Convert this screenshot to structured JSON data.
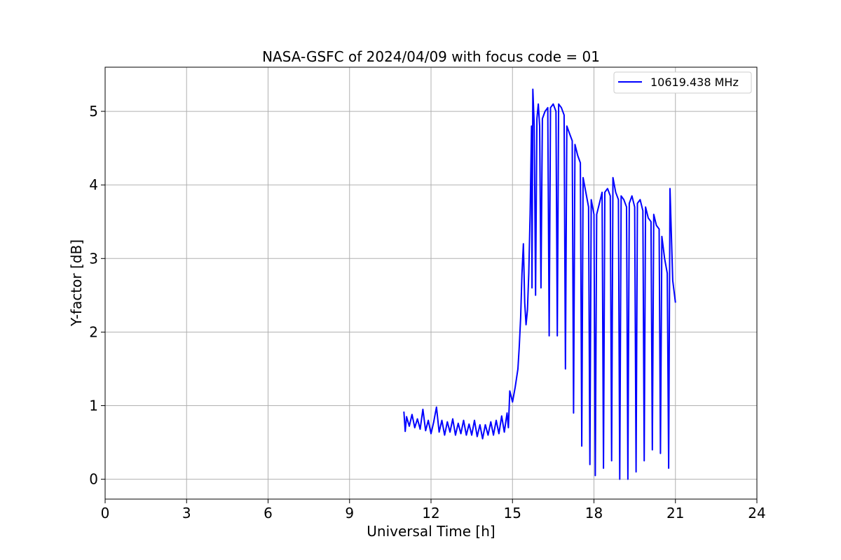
{
  "chart_data": {
    "type": "line",
    "title": "NASA-GSFC of 2024/04/09 with focus code = 01",
    "xlabel": "Universal Time [h]",
    "ylabel": "Y-factor [dB]",
    "xlim": [
      0,
      24
    ],
    "ylim": [
      -0.27,
      5.6
    ],
    "xticks": [
      0,
      3,
      6,
      9,
      12,
      15,
      18,
      21,
      24
    ],
    "yticks": [
      0,
      1,
      2,
      3,
      4,
      5
    ],
    "grid": true,
    "legend_position": "top-right",
    "series": [
      {
        "name": "10619.438 MHz",
        "color": "#0000ff",
        "points": [
          [
            11.0,
            0.92
          ],
          [
            11.05,
            0.65
          ],
          [
            11.1,
            0.85
          ],
          [
            11.2,
            0.72
          ],
          [
            11.3,
            0.88
          ],
          [
            11.4,
            0.7
          ],
          [
            11.5,
            0.82
          ],
          [
            11.6,
            0.68
          ],
          [
            11.7,
            0.95
          ],
          [
            11.8,
            0.66
          ],
          [
            11.9,
            0.8
          ],
          [
            12.0,
            0.62
          ],
          [
            12.1,
            0.78
          ],
          [
            12.2,
            0.98
          ],
          [
            12.3,
            0.64
          ],
          [
            12.4,
            0.8
          ],
          [
            12.5,
            0.6
          ],
          [
            12.6,
            0.78
          ],
          [
            12.7,
            0.64
          ],
          [
            12.8,
            0.82
          ],
          [
            12.9,
            0.6
          ],
          [
            13.0,
            0.76
          ],
          [
            13.1,
            0.62
          ],
          [
            13.2,
            0.8
          ],
          [
            13.3,
            0.6
          ],
          [
            13.4,
            0.75
          ],
          [
            13.5,
            0.6
          ],
          [
            13.6,
            0.8
          ],
          [
            13.7,
            0.58
          ],
          [
            13.8,
            0.74
          ],
          [
            13.9,
            0.55
          ],
          [
            14.0,
            0.74
          ],
          [
            14.1,
            0.6
          ],
          [
            14.2,
            0.78
          ],
          [
            14.3,
            0.6
          ],
          [
            14.4,
            0.8
          ],
          [
            14.5,
            0.62
          ],
          [
            14.6,
            0.86
          ],
          [
            14.7,
            0.64
          ],
          [
            14.8,
            0.9
          ],
          [
            14.85,
            0.7
          ],
          [
            14.9,
            1.2
          ],
          [
            15.0,
            1.05
          ],
          [
            15.1,
            1.25
          ],
          [
            15.2,
            1.5
          ],
          [
            15.25,
            1.8
          ],
          [
            15.3,
            2.2
          ],
          [
            15.35,
            2.8
          ],
          [
            15.4,
            3.2
          ],
          [
            15.45,
            2.4
          ],
          [
            15.5,
            2.1
          ],
          [
            15.55,
            2.3
          ],
          [
            15.6,
            2.8
          ],
          [
            15.65,
            3.6
          ],
          [
            15.7,
            4.8
          ],
          [
            15.72,
            2.6
          ],
          [
            15.75,
            5.3
          ],
          [
            15.8,
            4.8
          ],
          [
            15.85,
            2.5
          ],
          [
            15.9,
            4.9
          ],
          [
            15.95,
            5.1
          ],
          [
            16.0,
            4.8
          ],
          [
            16.05,
            2.6
          ],
          [
            16.1,
            4.9
          ],
          [
            16.2,
            5.0
          ],
          [
            16.3,
            5.05
          ],
          [
            16.35,
            1.95
          ],
          [
            16.4,
            5.05
          ],
          [
            16.5,
            5.1
          ],
          [
            16.6,
            5.0
          ],
          [
            16.65,
            1.95
          ],
          [
            16.7,
            5.1
          ],
          [
            16.8,
            5.05
          ],
          [
            16.9,
            4.95
          ],
          [
            16.95,
            1.5
          ],
          [
            17.0,
            4.8
          ],
          [
            17.1,
            4.7
          ],
          [
            17.2,
            4.6
          ],
          [
            17.25,
            0.9
          ],
          [
            17.3,
            4.55
          ],
          [
            17.4,
            4.4
          ],
          [
            17.5,
            4.3
          ],
          [
            17.55,
            0.45
          ],
          [
            17.6,
            4.1
          ],
          [
            17.7,
            3.9
          ],
          [
            17.8,
            3.7
          ],
          [
            17.85,
            0.2
          ],
          [
            17.9,
            3.8
          ],
          [
            18.0,
            3.6
          ],
          [
            18.05,
            0.05
          ],
          [
            18.1,
            3.6
          ],
          [
            18.2,
            3.75
          ],
          [
            18.3,
            3.9
          ],
          [
            18.35,
            0.15
          ],
          [
            18.4,
            3.9
          ],
          [
            18.5,
            3.95
          ],
          [
            18.6,
            3.85
          ],
          [
            18.65,
            0.25
          ],
          [
            18.7,
            4.1
          ],
          [
            18.8,
            3.9
          ],
          [
            18.9,
            3.8
          ],
          [
            18.95,
            0.0
          ],
          [
            19.0,
            3.85
          ],
          [
            19.1,
            3.8
          ],
          [
            19.2,
            3.7
          ],
          [
            19.25,
            0.0
          ],
          [
            19.3,
            3.75
          ],
          [
            19.4,
            3.85
          ],
          [
            19.5,
            3.7
          ],
          [
            19.55,
            0.1
          ],
          [
            19.6,
            3.75
          ],
          [
            19.7,
            3.8
          ],
          [
            19.8,
            3.65
          ],
          [
            19.85,
            0.25
          ],
          [
            19.9,
            3.7
          ],
          [
            20.0,
            3.55
          ],
          [
            20.1,
            3.5
          ],
          [
            20.15,
            0.4
          ],
          [
            20.2,
            3.6
          ],
          [
            20.3,
            3.45
          ],
          [
            20.4,
            3.4
          ],
          [
            20.45,
            0.35
          ],
          [
            20.5,
            3.3
          ],
          [
            20.6,
            3.0
          ],
          [
            20.7,
            2.8
          ],
          [
            20.75,
            0.15
          ],
          [
            20.8,
            3.95
          ],
          [
            20.9,
            2.7
          ],
          [
            21.0,
            2.4
          ]
        ]
      }
    ]
  }
}
